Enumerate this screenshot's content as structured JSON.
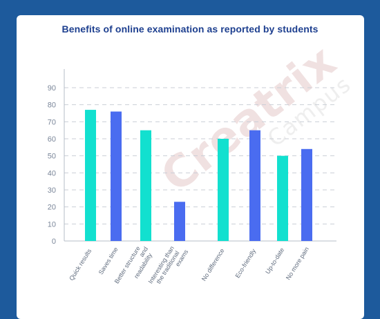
{
  "watermark": {
    "brand": "Creatrix",
    "sub": "Campus"
  },
  "chart_data": {
    "type": "bar",
    "title": "Benefits of online examination as reported by students",
    "xlabel": "",
    "ylabel": "",
    "ylim": [
      0,
      90
    ],
    "yticks": [
      0,
      10,
      20,
      30,
      40,
      50,
      60,
      70,
      80,
      90
    ],
    "grid": true,
    "categories": [
      [
        "Quick results"
      ],
      [
        "Saves time"
      ],
      [
        "Better structure",
        "and",
        "readability"
      ],
      [
        "Interesting than",
        "the traditional",
        "exams"
      ],
      [
        "No difference"
      ],
      [
        "Eco-friendly"
      ],
      [
        "Up-to-date"
      ],
      [
        "No more pain"
      ]
    ],
    "values": [
      77,
      76,
      65,
      23,
      60,
      65,
      50,
      54
    ],
    "colors": [
      "#12e0cf",
      "#4a6cf0",
      "#12e0cf",
      "#4a6cf0",
      "#12e0cf",
      "#4a6cf0",
      "#12e0cf",
      "#4a6cf0"
    ]
  }
}
